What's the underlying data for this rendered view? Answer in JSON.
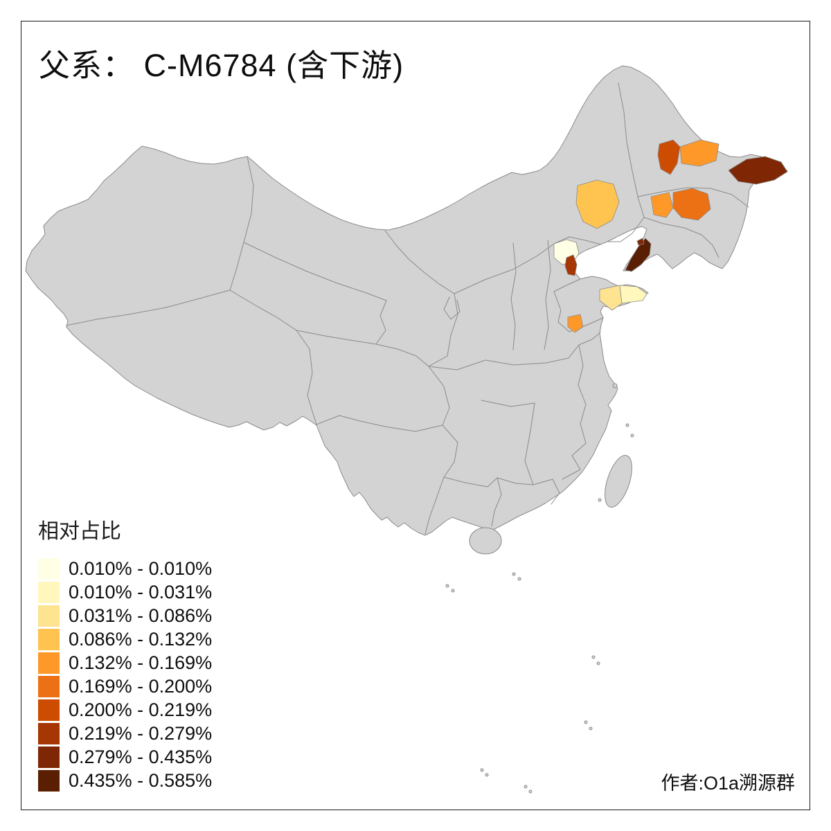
{
  "title": "父系： C-M6784 (含下游)",
  "attribution": "作者:O1a溯源群",
  "legend": {
    "title": "相对占比",
    "items": [
      {
        "label": "0.010% - 0.010%",
        "color": "#FFFFE5"
      },
      {
        "label": "0.010% - 0.031%",
        "color": "#FFF7BC"
      },
      {
        "label": "0.031% - 0.086%",
        "color": "#FEE391"
      },
      {
        "label": "0.086% - 0.132%",
        "color": "#FEC44F"
      },
      {
        "label": "0.132% - 0.169%",
        "color": "#FE9929"
      },
      {
        "label": "0.169% - 0.200%",
        "color": "#EC7014"
      },
      {
        "label": "0.200% - 0.219%",
        "color": "#CC4C02"
      },
      {
        "label": "0.219% - 0.279%",
        "color": "#A63603"
      },
      {
        "label": "0.279% - 0.435%",
        "color": "#7F2704"
      },
      {
        "label": "0.435% - 0.585%",
        "color": "#5A1E02"
      }
    ]
  },
  "map": {
    "land_fill": "#D3D3D3",
    "boundary_color": "#8A8A8A",
    "sea_color": "#FFFFFF",
    "regions": [
      {
        "id": "beijing",
        "color": "#FFFFE5",
        "bin": "0.010% - 0.010%"
      },
      {
        "id": "tianjin",
        "color": "#A63603",
        "bin": "0.219% - 0.279%"
      },
      {
        "id": "shandong-peninsula-west",
        "color": "#FEE391",
        "bin": "0.031% - 0.086%"
      },
      {
        "id": "shandong-peninsula-tip",
        "color": "#FFF7BC",
        "bin": "0.010% - 0.031%"
      },
      {
        "id": "southwest-shandong",
        "color": "#FE9929",
        "bin": "0.132% - 0.169%"
      },
      {
        "id": "liaodong-peninsula-dalian",
        "color": "#5A1E02",
        "bin": "0.435% - 0.585%"
      },
      {
        "id": "liaoning-small-spot",
        "color": "#7F2704",
        "bin": "0.279% - 0.435%"
      },
      {
        "id": "east-inner-mongolia-tongliao",
        "color": "#FEC44F",
        "bin": "0.086% - 0.132%"
      },
      {
        "id": "west-heilongjiang-strip",
        "color": "#CC4C02",
        "bin": "0.200% - 0.219%"
      },
      {
        "id": "north-central-heilongjiang",
        "color": "#FE9929",
        "bin": "0.132% - 0.169%"
      },
      {
        "id": "far-east-heilongjiang",
        "color": "#7F2704",
        "bin": "0.279% - 0.435%"
      },
      {
        "id": "west-jilin",
        "color": "#FE9929",
        "bin": "0.132% - 0.169%"
      },
      {
        "id": "central-jilin",
        "color": "#EC7014",
        "bin": "0.169% - 0.200%"
      }
    ]
  },
  "chart_data": {
    "type": "choropleth",
    "title": "父系： C-M6784 (含下游)",
    "legend_title": "相对占比",
    "bins": [
      "0.010% - 0.010%",
      "0.010% - 0.031%",
      "0.031% - 0.086%",
      "0.086% - 0.132%",
      "0.132% - 0.169%",
      "0.169% - 0.200%",
      "0.200% - 0.219%",
      "0.219% - 0.279%",
      "0.279% - 0.435%",
      "0.435% - 0.585%"
    ],
    "colored_areas": [
      {
        "area": "beijing",
        "bin": "0.010% - 0.010%"
      },
      {
        "area": "tianjin",
        "bin": "0.219% - 0.279%"
      },
      {
        "area": "shandong-peninsula-west",
        "bin": "0.031% - 0.086%"
      },
      {
        "area": "shandong-peninsula-tip",
        "bin": "0.010% - 0.031%"
      },
      {
        "area": "southwest-shandong",
        "bin": "0.132% - 0.169%"
      },
      {
        "area": "liaodong-peninsula-dalian",
        "bin": "0.435% - 0.585%"
      },
      {
        "area": "liaoning-small-spot",
        "bin": "0.279% - 0.435%"
      },
      {
        "area": "east-inner-mongolia-tongliao",
        "bin": "0.086% - 0.132%"
      },
      {
        "area": "west-heilongjiang-strip",
        "bin": "0.200% - 0.219%"
      },
      {
        "area": "north-central-heilongjiang",
        "bin": "0.132% - 0.169%"
      },
      {
        "area": "far-east-heilongjiang",
        "bin": "0.279% - 0.435%"
      },
      {
        "area": "west-jilin",
        "bin": "0.132% - 0.169%"
      },
      {
        "area": "central-jilin",
        "bin": "0.169% - 0.200%"
      }
    ]
  }
}
